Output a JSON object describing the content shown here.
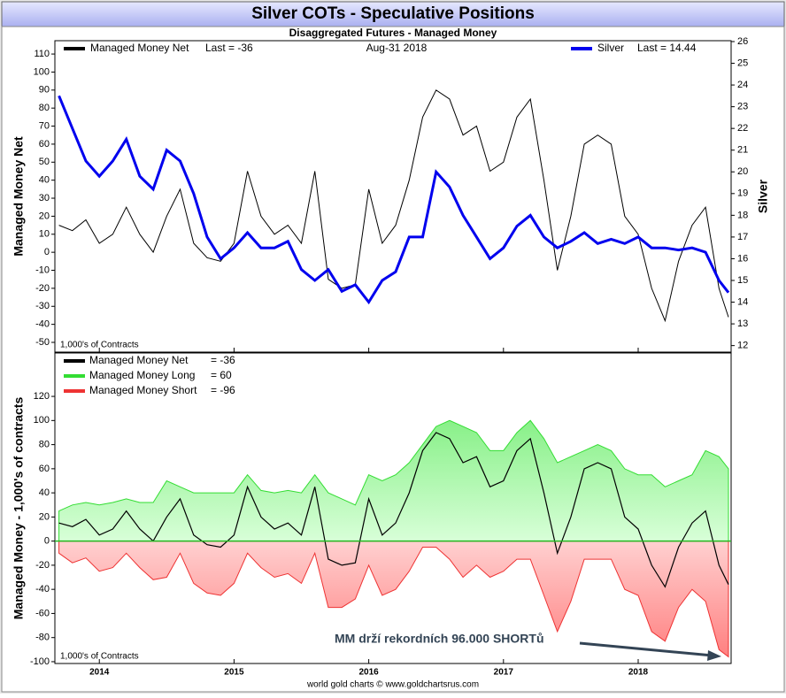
{
  "title": "Silver COTs - Speculative Positions",
  "subtitle": "Disaggregated Futures - Managed Money",
  "footer": "world gold charts © www.goldchartsrus.com",
  "chart_data": [
    {
      "type": "line",
      "date_label": "Aug-31  2018",
      "ylabel": "Managed Money Net",
      "y2label": "Silver",
      "unit_note": "1,000's of Contracts",
      "x": [
        2013.7,
        2013.8,
        2013.9,
        2014.0,
        2014.1,
        2014.2,
        2014.3,
        2014.4,
        2014.5,
        2014.6,
        2014.7,
        2014.8,
        2014.9,
        2015.0,
        2015.1,
        2015.2,
        2015.3,
        2015.4,
        2015.5,
        2015.6,
        2015.7,
        2015.8,
        2015.9,
        2016.0,
        2016.1,
        2016.2,
        2016.3,
        2016.4,
        2016.5,
        2016.6,
        2016.7,
        2016.8,
        2016.9,
        2017.0,
        2017.1,
        2017.2,
        2017.3,
        2017.4,
        2017.5,
        2017.6,
        2017.7,
        2017.8,
        2017.9,
        2018.0,
        2018.1,
        2018.2,
        2018.3,
        2018.4,
        2018.5,
        2018.6,
        2018.67
      ],
      "series": [
        {
          "name": "Managed Money Net",
          "last_label": "Last = -36",
          "color": "#000000",
          "values": [
            15,
            12,
            18,
            5,
            10,
            25,
            10,
            0,
            20,
            35,
            5,
            -3,
            -5,
            5,
            45,
            20,
            10,
            15,
            5,
            45,
            -15,
            -20,
            -18,
            35,
            5,
            15,
            40,
            75,
            90,
            85,
            65,
            70,
            45,
            50,
            75,
            85,
            40,
            -10,
            20,
            60,
            65,
            60,
            20,
            10,
            -20,
            -38,
            -5,
            15,
            25,
            -20,
            -36
          ]
        },
        {
          "name": "Silver",
          "last_label": "Last = 14.44",
          "color": "#0000ee",
          "axis": "y2",
          "values": [
            23.5,
            22,
            20.5,
            19.8,
            20.5,
            21.5,
            19.8,
            19.2,
            21,
            20.5,
            19,
            17,
            16,
            16.5,
            17.2,
            16.5,
            16.5,
            16.8,
            15.5,
            15,
            15.5,
            14.5,
            14.8,
            14,
            15,
            15.4,
            17,
            17,
            20,
            19.3,
            18,
            17,
            16,
            16.5,
            17.5,
            18,
            17,
            16.5,
            16.8,
            17.2,
            16.7,
            16.9,
            16.7,
            17,
            16.5,
            16.5,
            16.4,
            16.5,
            16.3,
            15,
            14.44
          ]
        }
      ],
      "xlim": [
        2013.67,
        2018.69
      ],
      "ylim": [
        -55.4,
        117.4
      ],
      "yticks": [
        -50,
        -40,
        -30,
        -20,
        -10,
        0,
        10,
        20,
        30,
        40,
        50,
        60,
        70,
        80,
        90,
        100,
        110
      ],
      "y2lim": [
        11.7,
        26.04
      ],
      "y2ticks": [
        12,
        13,
        14,
        15,
        16,
        17,
        18,
        19,
        20,
        21,
        22,
        23,
        24,
        25,
        26
      ]
    },
    {
      "type": "area",
      "ylabel": "Managed Money - 1,000's of contracts",
      "unit_note": "1,000's of Contracts",
      "annotation": "MM drží rekordních 96.000 SHORTů",
      "x": [
        2013.7,
        2013.8,
        2013.9,
        2014.0,
        2014.1,
        2014.2,
        2014.3,
        2014.4,
        2014.5,
        2014.6,
        2014.7,
        2014.8,
        2014.9,
        2015.0,
        2015.1,
        2015.2,
        2015.3,
        2015.4,
        2015.5,
        2015.6,
        2015.7,
        2015.8,
        2015.9,
        2016.0,
        2016.1,
        2016.2,
        2016.3,
        2016.4,
        2016.5,
        2016.6,
        2016.7,
        2016.8,
        2016.9,
        2017.0,
        2017.1,
        2017.2,
        2017.3,
        2017.4,
        2017.5,
        2017.6,
        2017.7,
        2017.8,
        2017.9,
        2018.0,
        2018.1,
        2018.2,
        2018.3,
        2018.4,
        2018.5,
        2018.6,
        2018.67
      ],
      "series": [
        {
          "name": "Managed Money Net",
          "last_label": "= -36",
          "color": "#000000",
          "values": [
            15,
            12,
            18,
            5,
            10,
            25,
            10,
            0,
            20,
            35,
            5,
            -3,
            -5,
            5,
            45,
            20,
            10,
            15,
            5,
            45,
            -15,
            -20,
            -18,
            35,
            5,
            15,
            40,
            75,
            90,
            85,
            65,
            70,
            45,
            50,
            75,
            85,
            40,
            -10,
            20,
            60,
            65,
            60,
            20,
            10,
            -20,
            -38,
            -5,
            15,
            25,
            -20,
            -36
          ]
        },
        {
          "name": "Managed Money Long",
          "last_label": "= 60",
          "color": "#33dd33",
          "values": [
            25,
            30,
            32,
            30,
            32,
            35,
            32,
            32,
            50,
            45,
            40,
            40,
            40,
            40,
            55,
            42,
            40,
            42,
            40,
            55,
            40,
            35,
            30,
            55,
            50,
            55,
            65,
            80,
            95,
            100,
            95,
            90,
            75,
            75,
            90,
            100,
            85,
            65,
            70,
            75,
            80,
            75,
            60,
            55,
            55,
            45,
            50,
            55,
            75,
            70,
            60
          ]
        },
        {
          "name": "Managed Money Short",
          "last_label": "= -96",
          "color": "#ee3333",
          "values": [
            -10,
            -18,
            -14,
            -25,
            -22,
            -10,
            -22,
            -32,
            -30,
            -10,
            -35,
            -43,
            -45,
            -35,
            -10,
            -22,
            -30,
            -27,
            -35,
            -10,
            -55,
            -55,
            -48,
            -20,
            -45,
            -40,
            -25,
            -5,
            -5,
            -15,
            -30,
            -20,
            -30,
            -25,
            -15,
            -15,
            -45,
            -75,
            -50,
            -15,
            -15,
            -15,
            -40,
            -45,
            -75,
            -83,
            -55,
            -40,
            -50,
            -90,
            -96
          ]
        }
      ],
      "xlim": [
        2013.67,
        2018.69
      ],
      "xticks": [
        2014,
        2015,
        2016,
        2017,
        2018
      ],
      "ylim": [
        -101.5,
        156
      ],
      "yticks": [
        -100,
        -80,
        -60,
        -40,
        -20,
        0,
        20,
        40,
        60,
        80,
        100,
        120
      ]
    }
  ]
}
